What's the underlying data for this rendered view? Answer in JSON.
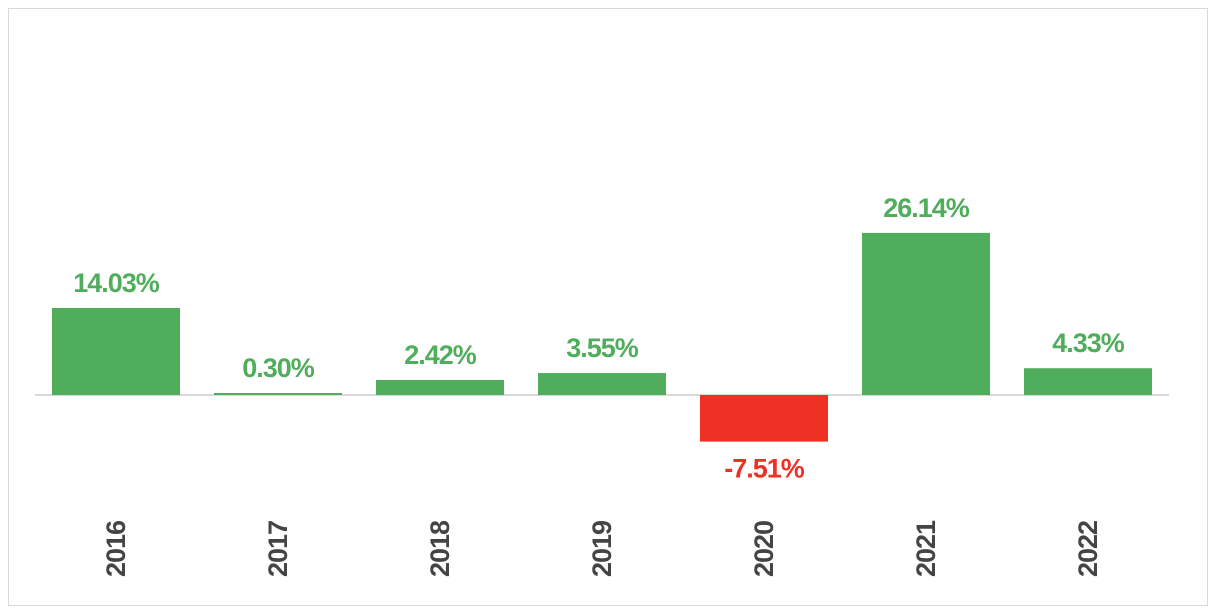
{
  "chart_data": {
    "type": "bar",
    "categories": [
      "2016",
      "2017",
      "2018",
      "2019",
      "2020",
      "2021",
      "2022"
    ],
    "values": [
      14.03,
      0.3,
      2.42,
      3.55,
      -7.51,
      26.14,
      4.33
    ],
    "value_labels": [
      "14.03%",
      "0.30%",
      "2.42%",
      "3.55%",
      "-7.51%",
      "26.14%",
      "4.33%"
    ],
    "title": "",
    "xlabel": "",
    "ylabel": "",
    "ylim": [
      -7.51,
      26.14
    ],
    "grid": false,
    "legend": "none",
    "colors": {
      "positive": "#4fad5b",
      "negative": "#ee3124",
      "baseline": "#d9d9d9",
      "tick_text": "#444444"
    }
  }
}
